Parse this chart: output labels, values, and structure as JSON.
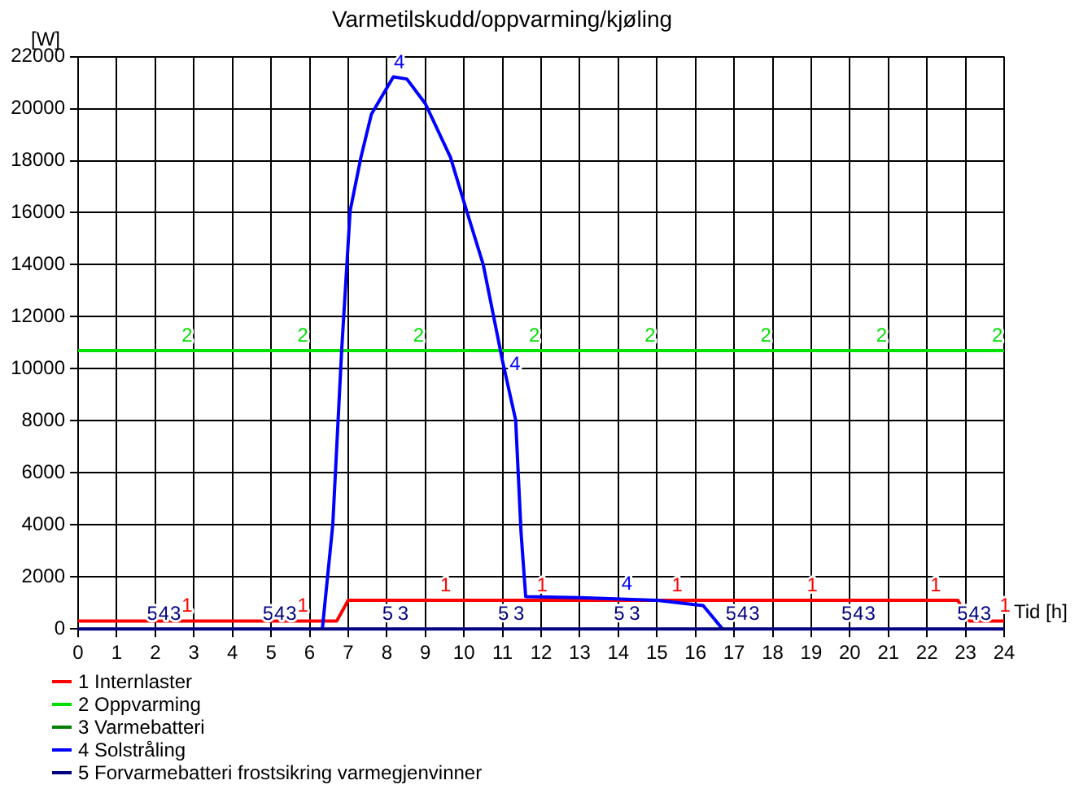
{
  "chart_data": {
    "type": "line",
    "title": "Varmetilskudd/oppvarming/kjøling",
    "xlabel": "Tid [h]",
    "ylabel": "[W]",
    "xlim": [
      0,
      24
    ],
    "xticks": [
      0,
      1,
      2,
      3,
      4,
      5,
      6,
      7,
      8,
      9,
      10,
      11,
      12,
      13,
      14,
      15,
      16,
      17,
      18,
      19,
      20,
      21,
      22,
      23,
      24
    ],
    "ylim": [
      0,
      22000
    ],
    "yticks": [
      0,
      2000,
      4000,
      6000,
      8000,
      10000,
      12000,
      14000,
      16000,
      18000,
      20000,
      22000
    ],
    "grid": true,
    "legend": "bottom left",
    "marker": "none",
    "line_style": "solid",
    "series": [
      {
        "name": "1 Internlaster",
        "color": "#ff0000",
        "x": [
          0,
          6.7,
          7,
          22.8,
          23.1,
          24
        ],
        "values": [
          300,
          300,
          1100,
          1100,
          300,
          300
        ]
      },
      {
        "name": "2 Oppvarming",
        "color": "#00e000",
        "x": [
          0,
          24
        ],
        "values": [
          10700,
          10700
        ]
      },
      {
        "name": "3 Varmebatteri",
        "color": "#008000"
      },
      {
        "name": "4 Solstråling",
        "color": "#0000ff",
        "x": [
          6.33,
          6.6,
          6.83,
          7.05,
          7.33,
          7.6,
          8.17,
          8.52,
          9.0,
          9.65,
          10.07,
          10.5,
          11.0,
          11.34,
          11.48,
          11.6,
          13,
          15,
          16.2,
          16.7
        ],
        "values": [
          0,
          4000,
          10700,
          16070,
          18130,
          19780,
          21220,
          21140,
          20190,
          18130,
          16070,
          14000,
          10300,
          8030,
          3700,
          1240,
          1200,
          1100,
          900,
          0
        ]
      },
      {
        "name": "5 Forvarmebatteri frostsikring varmegjenvinner",
        "color": "#000080",
        "x": [
          0,
          24
        ],
        "values": [
          0,
          0
        ]
      }
    ],
    "annotations": [
      {
        "text": "1",
        "x": 2.6,
        "y": 300
      },
      {
        "text": "1",
        "x": 5.6,
        "y": 300
      },
      {
        "text": "1",
        "x": 9.3,
        "y": 1100
      },
      {
        "text": "1",
        "x": 11.8,
        "y": 1100
      },
      {
        "text": "1",
        "x": 15.3,
        "y": 1100
      },
      {
        "text": "1",
        "x": 18.8,
        "y": 1100
      },
      {
        "text": "1",
        "x": 22.0,
        "y": 1100
      },
      {
        "text": "1",
        "x": 23.8,
        "y": 300
      },
      {
        "text": "2",
        "x": 2.6,
        "y": 10700
      },
      {
        "text": "2",
        "x": 5.6,
        "y": 10700
      },
      {
        "text": "2",
        "x": 8.6,
        "y": 10700
      },
      {
        "text": "2",
        "x": 11.6,
        "y": 10700
      },
      {
        "text": "2",
        "x": 14.6,
        "y": 10700
      },
      {
        "text": "2",
        "x": 17.6,
        "y": 10700
      },
      {
        "text": "2",
        "x": 20.6,
        "y": 10700
      },
      {
        "text": "2",
        "x": 23.6,
        "y": 10700
      },
      {
        "text": "4",
        "x": 8.1,
        "y": 21200
      },
      {
        "text": "4",
        "x": 11.1,
        "y": 9600
      },
      {
        "text": "4",
        "x": 14.0,
        "y": 1150
      },
      {
        "text": "5",
        "x": 1.7,
        "y": 0
      },
      {
        "text": "4",
        "x": 2.0,
        "y": 0
      },
      {
        "text": "3",
        "x": 2.3,
        "y": 0
      },
      {
        "text": "5",
        "x": 4.7,
        "y": 0
      },
      {
        "text": "4",
        "x": 5.0,
        "y": 0
      },
      {
        "text": "3",
        "x": 5.3,
        "y": 0
      },
      {
        "text": "5",
        "x": 7.8,
        "y": 0
      },
      {
        "text": "3",
        "x": 8.2,
        "y": 0
      },
      {
        "text": "5",
        "x": 10.8,
        "y": 0
      },
      {
        "text": "3",
        "x": 11.2,
        "y": 0
      },
      {
        "text": "5",
        "x": 13.8,
        "y": 0
      },
      {
        "text": "3",
        "x": 14.2,
        "y": 0
      },
      {
        "text": "5",
        "x": 16.7,
        "y": 0
      },
      {
        "text": "4",
        "x": 17.0,
        "y": 0
      },
      {
        "text": "3",
        "x": 17.3,
        "y": 0
      },
      {
        "text": "5",
        "x": 19.7,
        "y": 0
      },
      {
        "text": "4",
        "x": 20.0,
        "y": 0
      },
      {
        "text": "3",
        "x": 20.3,
        "y": 0
      },
      {
        "text": "5",
        "x": 22.7,
        "y": 0
      },
      {
        "text": "4",
        "x": 23.0,
        "y": 0
      },
      {
        "text": "3",
        "x": 23.3,
        "y": 0
      }
    ]
  }
}
